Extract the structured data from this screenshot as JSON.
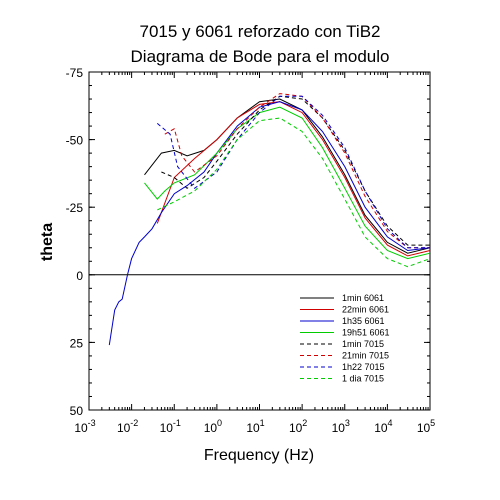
{
  "chart_data": {
    "type": "line",
    "title_lines": [
      "7015 y 6061 reforzado con TiB2",
      "Diagrama de Bode para el modulo"
    ],
    "xlabel": "Frequency (Hz)",
    "ylabel": "theta",
    "x_scale": "log",
    "x_range_exponents": [
      -3,
      5
    ],
    "x_tick_base": "10",
    "x_tick_exponents": [
      "-3",
      "-2",
      "-1",
      "0",
      "1",
      "2",
      "3",
      "4",
      "5"
    ],
    "ylim": [
      50,
      -75
    ],
    "y_ticks": [
      50,
      25,
      0,
      -25,
      -50,
      -75
    ],
    "y_tick_labels": [
      "50",
      "25",
      "0",
      "-25",
      "-50",
      "-75"
    ],
    "zero_line": true,
    "grid": false,
    "legend_position": "bottom-right",
    "series": [
      {
        "name": "1min 6061",
        "color": "#000000",
        "dash": "solid",
        "points": [
          [
            0.02,
            -37
          ],
          [
            0.05,
            -45
          ],
          [
            0.1,
            -46
          ],
          [
            0.2,
            -44
          ],
          [
            0.5,
            -46
          ],
          [
            1,
            -50
          ],
          [
            3,
            -58
          ],
          [
            10,
            -64
          ],
          [
            30,
            -65
          ],
          [
            100,
            -61
          ],
          [
            300,
            -51
          ],
          [
            1000,
            -37
          ],
          [
            3000,
            -22
          ],
          [
            10000,
            -12
          ],
          [
            30000,
            -8
          ],
          [
            100000,
            -10
          ]
        ]
      },
      {
        "name": "22min 6061",
        "color": "#d00000",
        "dash": "solid",
        "points": [
          [
            0.04,
            -19
          ],
          [
            0.1,
            -36
          ],
          [
            0.3,
            -43
          ],
          [
            1,
            -50
          ],
          [
            3,
            -58
          ],
          [
            10,
            -63
          ],
          [
            30,
            -64
          ],
          [
            100,
            -60
          ],
          [
            300,
            -50
          ],
          [
            1000,
            -36
          ],
          [
            3000,
            -21
          ],
          [
            10000,
            -11
          ],
          [
            30000,
            -7
          ],
          [
            100000,
            -9
          ]
        ]
      },
      {
        "name": "1h35 6061",
        "color": "#0000cc",
        "dash": "solid",
        "points": [
          [
            0.003,
            26
          ],
          [
            0.004,
            13
          ],
          [
            0.005,
            10
          ],
          [
            0.006,
            9
          ],
          [
            0.008,
            0
          ],
          [
            0.01,
            -6
          ],
          [
            0.015,
            -12
          ],
          [
            0.02,
            -14
          ],
          [
            0.03,
            -17
          ],
          [
            0.05,
            -23
          ],
          [
            0.1,
            -30
          ],
          [
            0.2,
            -33
          ],
          [
            0.5,
            -38
          ],
          [
            1,
            -45
          ],
          [
            3,
            -55
          ],
          [
            10,
            -62
          ],
          [
            30,
            -64
          ],
          [
            100,
            -61
          ],
          [
            300,
            -53
          ],
          [
            1000,
            -40
          ],
          [
            3000,
            -25
          ],
          [
            10000,
            -14
          ],
          [
            30000,
            -9
          ],
          [
            100000,
            -10
          ]
        ]
      },
      {
        "name": "19h51 6061",
        "color": "#00cc00",
        "dash": "solid",
        "points": [
          [
            0.02,
            -34
          ],
          [
            0.04,
            -28
          ],
          [
            0.06,
            -31
          ],
          [
            0.1,
            -34
          ],
          [
            0.3,
            -37
          ],
          [
            1,
            -45
          ],
          [
            3,
            -54
          ],
          [
            10,
            -60
          ],
          [
            30,
            -62
          ],
          [
            100,
            -58
          ],
          [
            300,
            -47
          ],
          [
            1000,
            -32
          ],
          [
            3000,
            -18
          ],
          [
            10000,
            -9
          ],
          [
            30000,
            -6
          ],
          [
            100000,
            -8
          ]
        ]
      },
      {
        "name": "1min 7015",
        "color": "#000000",
        "dash": "dashed",
        "points": [
          [
            0.05,
            -38
          ],
          [
            0.1,
            -36
          ],
          [
            0.2,
            -32
          ],
          [
            0.5,
            -36
          ],
          [
            1,
            -42
          ],
          [
            3,
            -52
          ],
          [
            10,
            -61
          ],
          [
            30,
            -66
          ],
          [
            100,
            -65
          ],
          [
            300,
            -58
          ],
          [
            1000,
            -46
          ],
          [
            3000,
            -31
          ],
          [
            10000,
            -18
          ],
          [
            30000,
            -11
          ],
          [
            100000,
            -11
          ]
        ]
      },
      {
        "name": "21min 7015",
        "color": "#d00000",
        "dash": "dashed",
        "points": [
          [
            0.06,
            -52
          ],
          [
            0.1,
            -54
          ],
          [
            0.15,
            -44
          ],
          [
            0.3,
            -38
          ],
          [
            1,
            -44
          ],
          [
            3,
            -54
          ],
          [
            10,
            -62
          ],
          [
            30,
            -67
          ],
          [
            100,
            -66
          ],
          [
            300,
            -58
          ],
          [
            1000,
            -45
          ],
          [
            3000,
            -29
          ],
          [
            10000,
            -16
          ],
          [
            30000,
            -10
          ],
          [
            100000,
            -10
          ]
        ]
      },
      {
        "name": "1h22 7015",
        "color": "#0000cc",
        "dash": "dashed",
        "points": [
          [
            0.04,
            -56
          ],
          [
            0.08,
            -52
          ],
          [
            0.12,
            -40
          ],
          [
            0.3,
            -32
          ],
          [
            1,
            -38
          ],
          [
            3,
            -50
          ],
          [
            10,
            -60
          ],
          [
            30,
            -66
          ],
          [
            100,
            -66
          ],
          [
            300,
            -59
          ],
          [
            1000,
            -47
          ],
          [
            3000,
            -31
          ],
          [
            10000,
            -17
          ],
          [
            30000,
            -10
          ],
          [
            100000,
            -10
          ]
        ]
      },
      {
        "name": "1 dia 7015",
        "color": "#00cc00",
        "dash": "dashed",
        "points": [
          [
            0.04,
            -24
          ],
          [
            0.1,
            -27
          ],
          [
            0.3,
            -31
          ],
          [
            1,
            -39
          ],
          [
            3,
            -50
          ],
          [
            10,
            -57
          ],
          [
            30,
            -58
          ],
          [
            100,
            -53
          ],
          [
            300,
            -43
          ],
          [
            1000,
            -28
          ],
          [
            3000,
            -14
          ],
          [
            10000,
            -6
          ],
          [
            30000,
            -3
          ],
          [
            100000,
            -6
          ]
        ]
      }
    ]
  }
}
